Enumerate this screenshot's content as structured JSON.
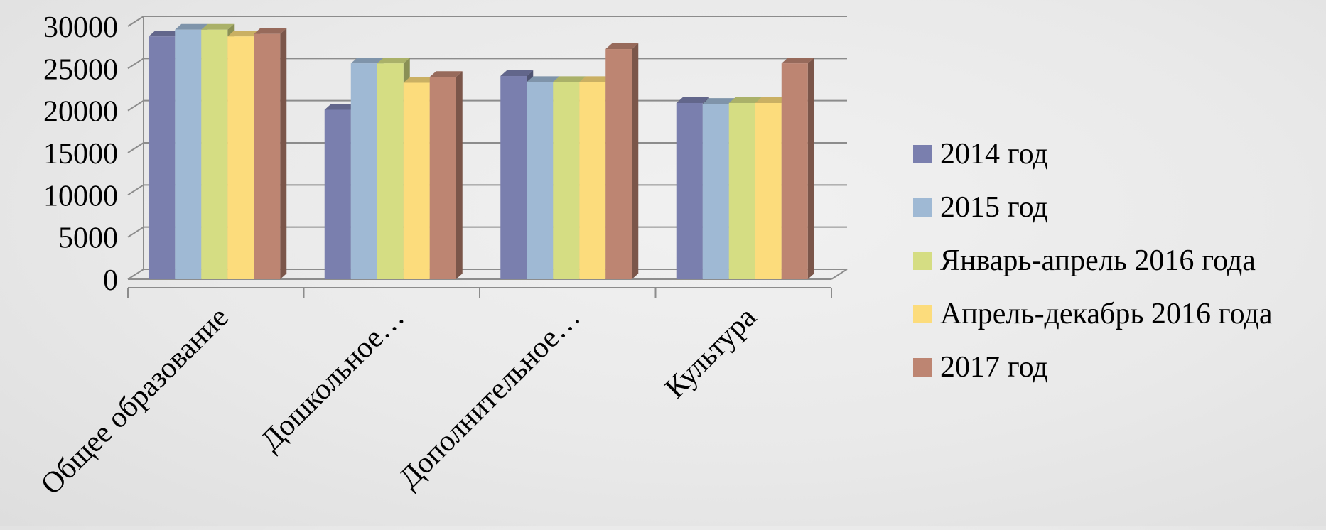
{
  "chart_data": {
    "type": "bar",
    "title": "",
    "xlabel": "",
    "ylabel": "",
    "ylim": [
      0,
      30000
    ],
    "yticks": [
      0,
      5000,
      10000,
      15000,
      20000,
      25000,
      30000
    ],
    "grid": true,
    "legend_position": "right",
    "categories": [
      "Общее образование",
      "Дошкольное…",
      "Дополнительное…",
      "Культура"
    ],
    "series": [
      {
        "name": "2014 год",
        "color": "#7a7fae",
        "values": [
          28800,
          20100,
          24100,
          20900
        ]
      },
      {
        "name": "2015 год",
        "color": "#9fb9d4",
        "values": [
          29600,
          25600,
          23400,
          20800
        ]
      },
      {
        "name": "Январь-апрель 2016 года",
        "color": "#d5dd83",
        "values": [
          29600,
          25600,
          23400,
          20900
        ]
      },
      {
        "name": "Апрель-декабрь 2016 года",
        "color": "#fcdc7c",
        "values": [
          28800,
          23300,
          23400,
          20900
        ]
      },
      {
        "name": "2017 год",
        "color": "#bd8572",
        "values": [
          29100,
          24000,
          27300,
          25600
        ]
      }
    ]
  }
}
